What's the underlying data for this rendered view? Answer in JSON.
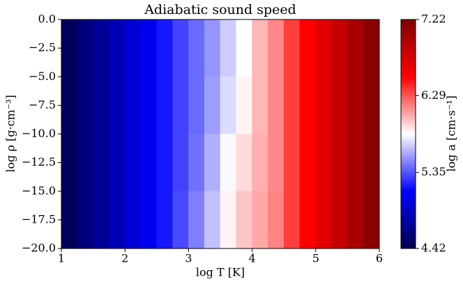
{
  "chart_data": {
    "type": "heatmap",
    "title": "Adiabatic sound speed",
    "x_label": "log T [K]",
    "y_label": "log ρ [g·cm⁻³]",
    "colorbar_label": "log a [cm·s⁻¹]",
    "colormap": "seismic",
    "xlim": [
      1,
      6
    ],
    "xticks": [
      1,
      2,
      3,
      4,
      5,
      6
    ],
    "ylim": [
      -20,
      0
    ],
    "yticks": [
      {
        "value": 0,
        "label": "0.0"
      },
      {
        "value": -2.5,
        "label": "−2.5"
      },
      {
        "value": -5,
        "label": "−5.0"
      },
      {
        "value": -7.5,
        "label": "−7.5"
      },
      {
        "value": -10,
        "label": "−10.0"
      },
      {
        "value": -12.5,
        "label": "−12.5"
      },
      {
        "value": -15,
        "label": "−15.0"
      },
      {
        "value": -17.5,
        "label": "−17.5"
      },
      {
        "value": -20,
        "label": "−20.0"
      }
    ],
    "clim": [
      4.42,
      7.22
    ],
    "cticks": [
      4.42,
      5.35,
      6.29,
      7.22
    ],
    "x": [
      1.125,
      1.375,
      1.625,
      1.875,
      2.125,
      2.375,
      2.625,
      2.875,
      3.125,
      3.375,
      3.625,
      3.875,
      4.125,
      4.375,
      4.625,
      4.875,
      5.125,
      5.375,
      5.625,
      5.875
    ],
    "y": [
      -2.5,
      -7.5,
      -12.5,
      -17.5
    ],
    "z": [
      [
        4.48,
        4.6,
        4.71,
        4.83,
        4.95,
        5.06,
        5.18,
        5.3,
        5.41,
        5.53,
        5.68,
        5.82,
        6.02,
        6.15,
        6.35,
        6.52,
        6.68,
        6.84,
        7.0,
        7.16
      ],
      [
        4.48,
        4.6,
        4.71,
        4.83,
        4.95,
        5.06,
        5.18,
        5.3,
        5.41,
        5.55,
        5.72,
        5.85,
        6.02,
        6.15,
        6.35,
        6.52,
        6.68,
        6.84,
        7.0,
        7.16
      ],
      [
        4.48,
        4.6,
        4.71,
        4.83,
        4.95,
        5.06,
        5.18,
        5.3,
        5.43,
        5.6,
        5.8,
        5.92,
        6.04,
        6.15,
        6.35,
        6.52,
        6.68,
        6.84,
        7.0,
        7.16
      ],
      [
        4.48,
        4.6,
        4.71,
        4.83,
        4.95,
        5.06,
        5.18,
        5.32,
        5.47,
        5.65,
        5.85,
        5.98,
        6.06,
        6.16,
        6.35,
        6.52,
        6.68,
        6.84,
        7.0,
        7.16
      ]
    ]
  }
}
